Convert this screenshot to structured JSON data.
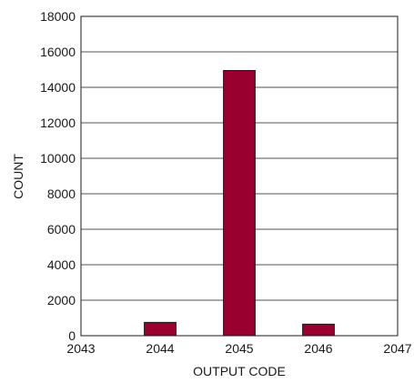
{
  "chart_data": {
    "type": "bar",
    "title": "",
    "xlabel": "OUTPUT CODE",
    "ylabel": "COUNT",
    "xlim": [
      2043,
      2047
    ],
    "ylim": [
      0,
      18000
    ],
    "x_ticks": [
      "2043",
      "2044",
      "2045",
      "2046",
      "2047"
    ],
    "y_ticks": [
      "0",
      "2000",
      "4000",
      "6000",
      "8000",
      "10000",
      "12000",
      "14000",
      "16000",
      "18000"
    ],
    "x": [
      2043,
      2044,
      2045,
      2046,
      2047
    ],
    "values": [
      0,
      750,
      14950,
      650,
      0
    ],
    "bar_color": "#990030",
    "grid": "horizontal",
    "legend": "none"
  }
}
